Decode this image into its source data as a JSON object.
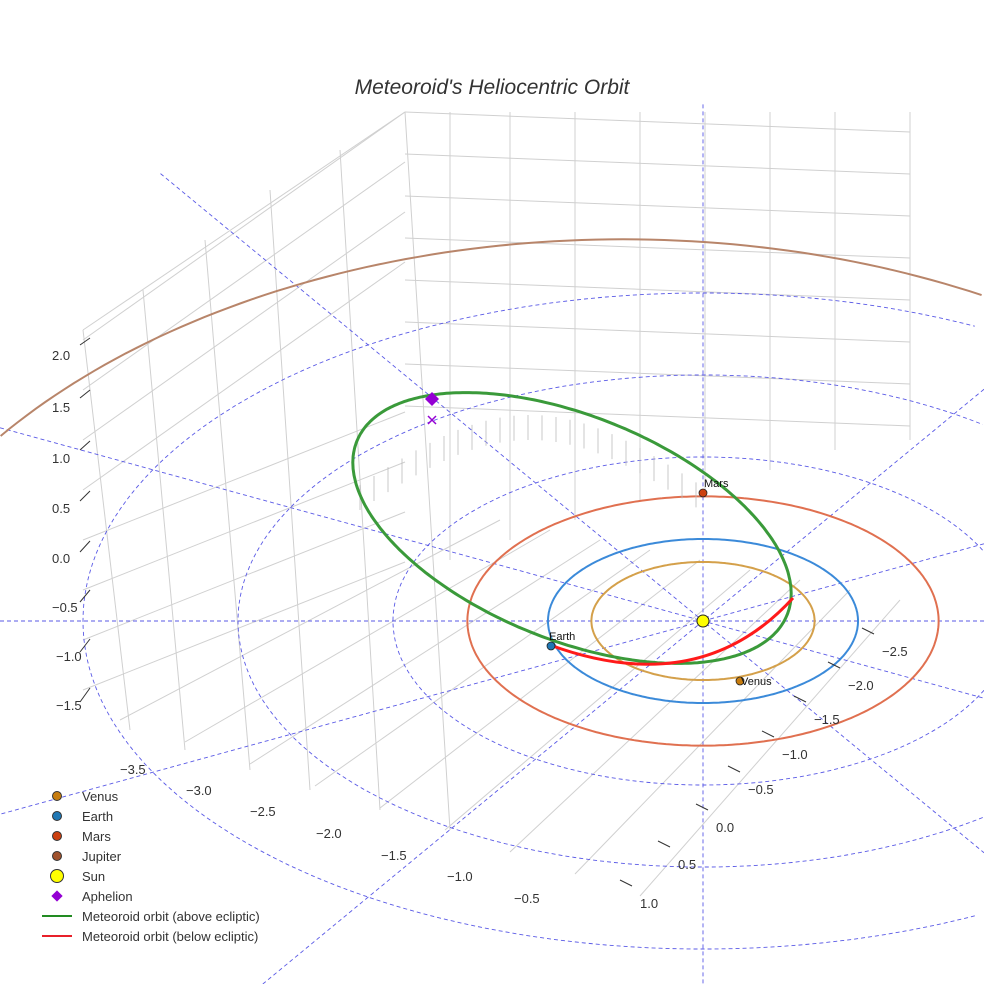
{
  "chart_data": {
    "type": "scatter3d",
    "title": "Meteoroid's Heliocentric Orbit",
    "axes": {
      "x_ticks": [
        "−3.5",
        "−3.0",
        "−2.5",
        "−2.0",
        "−1.5",
        "−1.0",
        "−0.5"
      ],
      "y_ticks": [
        "−2.5",
        "−2.0",
        "−1.5",
        "−1.0",
        "−0.5",
        "0.0",
        "0.5",
        "1.0"
      ],
      "z_ticks": [
        "2.0",
        "1.5",
        "1.0",
        "0.5",
        "0.0",
        "−0.5",
        "−1.0",
        "−1.5"
      ],
      "grid": true
    },
    "planets": [
      {
        "name": "Venus",
        "semi_major_au": 0.72,
        "color": "#d4a04a",
        "marker": "#c77c0e",
        "label": "Venus"
      },
      {
        "name": "Earth",
        "semi_major_au": 1.0,
        "color": "#3b8ad9",
        "marker": "#1f77b4",
        "label": "Earth"
      },
      {
        "name": "Mars",
        "semi_major_au": 1.52,
        "color": "#e07050",
        "marker": "#cc4010",
        "label": "Mars"
      },
      {
        "name": "Jupiter",
        "semi_major_au": 5.2,
        "color": "#b8856a",
        "marker": "#a0522d",
        "label": ""
      }
    ],
    "ecliptic_grid_radii_au": [
      1,
      2,
      3,
      4
    ],
    "legend": {
      "placement": "bottom-left",
      "entries": [
        {
          "label": "Venus",
          "type": "dot",
          "color": "#c77c0e"
        },
        {
          "label": "Earth",
          "type": "dot",
          "color": "#1f77b4"
        },
        {
          "label": "Mars",
          "type": "dot",
          "color": "#cc4010"
        },
        {
          "label": "Jupiter",
          "type": "dot",
          "color": "#a0522d"
        },
        {
          "label": "Sun",
          "type": "sun",
          "color": "#ffff00"
        },
        {
          "label": "Aphelion",
          "type": "diamond",
          "color": "#9400d3"
        },
        {
          "label": "Meteoroid orbit (above ecliptic)",
          "type": "line",
          "color": "#228b22"
        },
        {
          "label": "Meteoroid orbit (below ecliptic)",
          "type": "line",
          "color": "#e8202a"
        }
      ]
    }
  }
}
